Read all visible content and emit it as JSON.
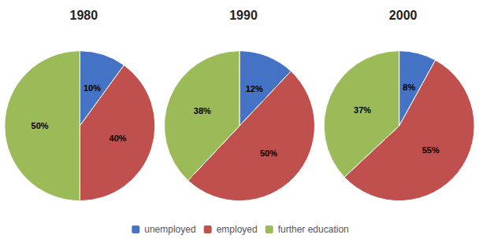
{
  "chart_data": [
    {
      "type": "pie",
      "title": "1980",
      "categories": [
        "unemployed",
        "employed",
        "further education"
      ],
      "values": [
        10,
        40,
        50
      ],
      "value_labels": [
        "10%",
        "40%",
        "50%"
      ],
      "colors": [
        "#4472c4",
        "#c0504d",
        "#9bbb59"
      ],
      "data_labels": true,
      "legend": "bottom"
    },
    {
      "type": "pie",
      "title": "1990",
      "categories": [
        "unemployed",
        "employed",
        "further education"
      ],
      "values": [
        12,
        50,
        38
      ],
      "value_labels": [
        "12%",
        "50%",
        "38%"
      ],
      "colors": [
        "#4472c4",
        "#c0504d",
        "#9bbb59"
      ],
      "data_labels": true,
      "legend": "bottom"
    },
    {
      "type": "pie",
      "title": "2000",
      "categories": [
        "unemployed",
        "employed",
        "further education"
      ],
      "values": [
        8,
        55,
        37
      ],
      "value_labels": [
        "8%",
        "55%",
        "37%"
      ],
      "colors": [
        "#4472c4",
        "#c0504d",
        "#9bbb59"
      ],
      "data_labels": true,
      "legend": "bottom"
    }
  ]
}
